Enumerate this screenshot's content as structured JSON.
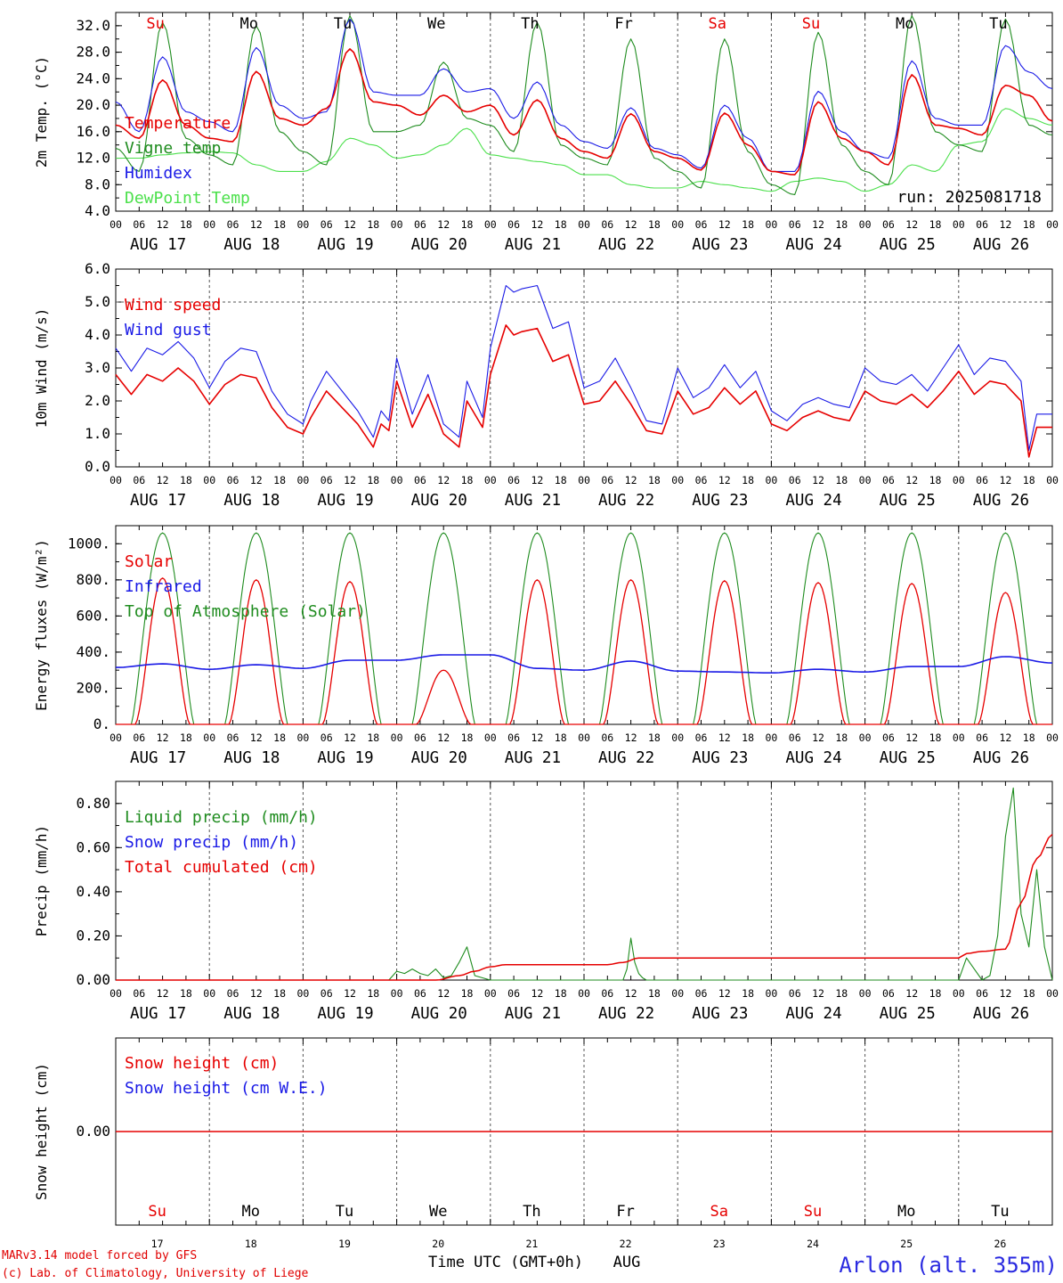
{
  "colors": {
    "red": "#e60000",
    "green": "#1f8c1f",
    "blue": "#1a1ae6",
    "lightgreen": "#4ce04c"
  },
  "weekdays": [
    "Su",
    "Mo",
    "Tu",
    "We",
    "Th",
    "Fr",
    "Sa",
    "Su",
    "Mo",
    "Tu"
  ],
  "weekday_colors": [
    "red",
    "black",
    "black",
    "black",
    "black",
    "black",
    "red",
    "red",
    "black",
    "black"
  ],
  "date_labels": [
    "AUG 17",
    "AUG 18",
    "AUG 19",
    "AUG 20",
    "AUG 21",
    "AUG 22",
    "AUG 23",
    "AUG 24",
    "AUG 25",
    "AUG 26"
  ],
  "hour_labels": [
    "00",
    "06",
    "12",
    "18"
  ],
  "end_hour_label": "00",
  "bottom_day_numbers": [
    "17",
    "18",
    "19",
    "20",
    "21",
    "22",
    "23",
    "24",
    "25",
    "26"
  ],
  "run_label": "run: 2025081718",
  "xtitle": "Time UTC (GMT+0h)",
  "xtitle_month": "AUG",
  "footer": {
    "line1": "MARv3.14 model forced by GFS",
    "line2": "(c) Lab. of Climatology, University of Liege"
  },
  "station": "Arlon (alt. 355m)",
  "chart_data": [
    {
      "id": "temp",
      "type": "line",
      "ylabel": "2m Temp. (°C)",
      "ylim": [
        4,
        34
      ],
      "yticks": [
        "4.0",
        "8.0",
        "12.0",
        "16.0",
        "20.0",
        "24.0",
        "28.0",
        "32.0"
      ],
      "x_unit": "hours from AUG 17 00 UTC",
      "xlim": [
        0,
        240
      ],
      "legend": [
        {
          "label": "Temperature",
          "color": "red"
        },
        {
          "label": "Vigne temp",
          "color": "green"
        },
        {
          "label": "Humidex",
          "color": "blue"
        },
        {
          "label": "DewPoint Temp",
          "color": "lightgreen"
        }
      ],
      "series": [
        {
          "name": "Temperature",
          "color": "red",
          "x": [
            0,
            6,
            12,
            18,
            24,
            30,
            36,
            42,
            48,
            54,
            60,
            66,
            72,
            78,
            84,
            90,
            96,
            102,
            108,
            114,
            120,
            126,
            132,
            138,
            144,
            150,
            156,
            162,
            168,
            174,
            180,
            186,
            192,
            198,
            204,
            210,
            216,
            222,
            228,
            234,
            240
          ],
          "values": [
            17,
            15,
            23.8,
            17,
            15,
            14.5,
            25.1,
            18,
            17,
            19.5,
            28.5,
            20.5,
            20,
            18.5,
            21.5,
            19,
            20,
            15.5,
            20.8,
            15,
            13,
            12,
            18.7,
            13,
            12,
            10.2,
            18.8,
            14,
            10,
            9.5,
            20.5,
            15,
            13,
            11,
            24.6,
            17,
            16.5,
            15.5,
            23,
            21.5,
            17.6
          ]
        },
        {
          "name": "Vigne temp",
          "color": "green",
          "x": [
            0,
            6,
            12,
            18,
            24,
            30,
            36,
            42,
            48,
            54,
            60,
            66,
            72,
            78,
            84,
            90,
            96,
            102,
            108,
            114,
            120,
            126,
            132,
            138,
            144,
            150,
            156,
            162,
            168,
            174,
            180,
            186,
            192,
            198,
            204,
            210,
            216,
            222,
            228,
            234,
            240
          ],
          "values": [
            13.5,
            10,
            32.5,
            15,
            12.5,
            11,
            32,
            16,
            13,
            11,
            33.5,
            16,
            16,
            17,
            26.5,
            18,
            17,
            13,
            32.5,
            14,
            12,
            11,
            30,
            12,
            10,
            7.5,
            30,
            13,
            8,
            6.5,
            31,
            14,
            10,
            8,
            33.5,
            16,
            14,
            13,
            33,
            17,
            15.5
          ]
        },
        {
          "name": "Humidex",
          "color": "blue",
          "x": [
            0,
            6,
            12,
            18,
            24,
            30,
            36,
            42,
            48,
            54,
            60,
            66,
            72,
            78,
            84,
            90,
            96,
            102,
            108,
            114,
            120,
            126,
            132,
            138,
            144,
            150,
            156,
            162,
            168,
            174,
            180,
            186,
            192,
            198,
            204,
            210,
            216,
            222,
            228,
            234,
            240
          ],
          "values": [
            20.5,
            16,
            27.3,
            19,
            17.5,
            16,
            28.7,
            20,
            18,
            19,
            33,
            22,
            21.5,
            21.5,
            25.5,
            22,
            22.5,
            18,
            23.5,
            17,
            14.5,
            13.5,
            19.6,
            13.5,
            12.5,
            10.5,
            20,
            15,
            10,
            10,
            22.1,
            16,
            13,
            12,
            26.7,
            18,
            17,
            17,
            29,
            25,
            22.5
          ]
        },
        {
          "name": "DewPoint Temp",
          "color": "lightgreen",
          "x": [
            0,
            6,
            12,
            18,
            24,
            30,
            36,
            42,
            48,
            54,
            60,
            66,
            72,
            78,
            84,
            90,
            96,
            102,
            108,
            114,
            120,
            126,
            132,
            138,
            144,
            150,
            156,
            162,
            168,
            174,
            180,
            186,
            192,
            198,
            204,
            210,
            216,
            222,
            228,
            234,
            240
          ],
          "values": [
            12,
            12,
            12.5,
            12.8,
            13,
            12.8,
            11,
            10,
            10,
            11.5,
            15,
            14,
            12,
            12.5,
            14,
            16.5,
            12.5,
            12,
            11.5,
            11,
            9.5,
            9.5,
            8,
            7.5,
            7.5,
            8.5,
            8,
            7.5,
            7,
            8.5,
            9,
            8.5,
            7,
            8,
            11,
            10,
            14,
            14.5,
            19.5,
            18,
            17
          ]
        }
      ]
    },
    {
      "id": "wind",
      "type": "line",
      "ylabel": "10m Wind (m/s)",
      "ylim": [
        0,
        6
      ],
      "yticks": [
        "0.0",
        "1.0",
        "2.0",
        "3.0",
        "4.0",
        "5.0",
        "6.0"
      ],
      "ref_line": 5,
      "x_unit": "hours from AUG 17 00 UTC",
      "xlim": [
        0,
        240
      ],
      "legend": [
        {
          "label": "Wind speed",
          "color": "red"
        },
        {
          "label": "Wind gust",
          "color": "blue"
        }
      ],
      "series": [
        {
          "name": "Wind speed",
          "color": "red",
          "x": [
            0,
            4,
            8,
            12,
            16,
            20,
            24,
            28,
            32,
            36,
            40,
            44,
            48,
            50,
            54,
            58,
            62,
            66,
            68,
            70,
            72,
            76,
            80,
            84,
            88,
            90,
            94,
            96,
            100,
            102,
            104,
            108,
            112,
            116,
            120,
            124,
            128,
            132,
            136,
            140,
            144,
            148,
            152,
            156,
            160,
            164,
            168,
            172,
            176,
            180,
            184,
            188,
            192,
            196,
            200,
            204,
            208,
            212,
            216,
            220,
            224,
            228,
            232,
            234,
            236,
            240
          ],
          "values": [
            2.8,
            2.2,
            2.8,
            2.6,
            3.0,
            2.6,
            1.9,
            2.5,
            2.8,
            2.7,
            1.8,
            1.2,
            1.0,
            1.5,
            2.3,
            1.8,
            1.3,
            0.6,
            1.3,
            1.1,
            2.6,
            1.2,
            2.2,
            1.0,
            0.6,
            2.0,
            1.2,
            2.8,
            4.3,
            4.0,
            4.1,
            4.2,
            3.2,
            3.4,
            1.9,
            2.0,
            2.6,
            1.9,
            1.1,
            1.0,
            2.3,
            1.6,
            1.8,
            2.4,
            1.9,
            2.3,
            1.3,
            1.1,
            1.5,
            1.7,
            1.5,
            1.4,
            2.3,
            2.0,
            1.9,
            2.2,
            1.8,
            2.3,
            2.9,
            2.2,
            2.6,
            2.5,
            2.0,
            0.3,
            1.2,
            1.2
          ]
        },
        {
          "name": "Wind gust",
          "color": "blue",
          "x": [
            0,
            4,
            8,
            12,
            16,
            20,
            24,
            28,
            32,
            36,
            40,
            44,
            48,
            50,
            54,
            58,
            62,
            66,
            68,
            70,
            72,
            76,
            80,
            84,
            88,
            90,
            94,
            96,
            100,
            102,
            104,
            108,
            112,
            116,
            120,
            124,
            128,
            132,
            136,
            140,
            144,
            148,
            152,
            156,
            160,
            164,
            168,
            172,
            176,
            180,
            184,
            188,
            192,
            196,
            200,
            204,
            208,
            212,
            216,
            220,
            224,
            228,
            232,
            234,
            236,
            240
          ],
          "values": [
            3.6,
            2.9,
            3.6,
            3.4,
            3.8,
            3.3,
            2.4,
            3.2,
            3.6,
            3.5,
            2.3,
            1.6,
            1.3,
            2.0,
            2.9,
            2.3,
            1.7,
            0.9,
            1.7,
            1.4,
            3.3,
            1.6,
            2.8,
            1.3,
            0.9,
            2.6,
            1.5,
            3.6,
            5.5,
            5.3,
            5.4,
            5.5,
            4.2,
            4.4,
            2.4,
            2.6,
            3.3,
            2.4,
            1.4,
            1.3,
            3.0,
            2.1,
            2.4,
            3.1,
            2.4,
            2.9,
            1.7,
            1.4,
            1.9,
            2.1,
            1.9,
            1.8,
            3.0,
            2.6,
            2.5,
            2.8,
            2.3,
            3.0,
            3.7,
            2.8,
            3.3,
            3.2,
            2.6,
            0.5,
            1.6,
            1.6
          ]
        }
      ]
    },
    {
      "id": "energy",
      "type": "line",
      "ylabel": "Energy fluxes (W/m²)",
      "ylim": [
        0,
        1100
      ],
      "yticks": [
        "0.",
        "200.",
        "400.",
        "600.",
        "800.",
        "1000."
      ],
      "x_unit": "hours from AUG 17 00 UTC",
      "xlim": [
        0,
        240
      ],
      "legend": [
        {
          "label": "Solar",
          "color": "red"
        },
        {
          "label": "Infrared",
          "color": "blue"
        },
        {
          "label": "Top of Atmosphere (Solar)",
          "color": "green"
        }
      ],
      "solar_peaks": [
        810,
        800,
        790,
        300,
        800,
        800,
        795,
        785,
        780,
        730
      ],
      "toa_peak": 1060,
      "series": [
        {
          "name": "Solar",
          "color": "red",
          "derived": "daily bell between 05 and 19 UTC, peak from solar_peaks"
        },
        {
          "name": "Top of Atmosphere (Solar)",
          "color": "green",
          "derived": "daily bell between 04 and 20 UTC, peak toa_peak"
        },
        {
          "name": "Infrared",
          "color": "blue",
          "x": [
            0,
            12,
            24,
            36,
            48,
            60,
            72,
            84,
            96,
            108,
            120,
            132,
            144,
            156,
            168,
            180,
            192,
            204,
            216,
            228,
            240
          ],
          "values": [
            315,
            335,
            305,
            330,
            310,
            355,
            355,
            385,
            385,
            310,
            300,
            350,
            295,
            290,
            285,
            305,
            290,
            320,
            320,
            375,
            340
          ]
        }
      ]
    },
    {
      "id": "precip",
      "type": "line",
      "ylabel": "Precip (mm/h)",
      "ylim": [
        0,
        0.9
      ],
      "yticks": [
        "0.00",
        "0.20",
        "0.40",
        "0.60",
        "0.80"
      ],
      "x_unit": "hours from AUG 17 00 UTC",
      "xlim": [
        0,
        240
      ],
      "legend": [
        {
          "label": "Liquid precip (mm/h)",
          "color": "green"
        },
        {
          "label": "Snow precip (mm/h)",
          "color": "blue"
        },
        {
          "label": "Total cumulated (cm)",
          "color": "red"
        }
      ],
      "series": [
        {
          "name": "Liquid precip (mm/h)",
          "color": "green",
          "x": [
            0,
            70,
            72,
            74,
            76,
            78,
            80,
            82,
            84,
            86,
            88,
            90,
            92,
            94,
            96,
            98,
            130,
            131,
            132,
            133,
            134,
            135,
            136,
            138,
            140,
            200,
            216,
            218,
            220,
            222,
            224,
            226,
            228,
            230,
            232,
            234,
            236,
            238,
            240
          ],
          "values": [
            0,
            0,
            0.04,
            0.03,
            0.05,
            0.03,
            0.02,
            0.05,
            0.01,
            0.02,
            0.08,
            0.15,
            0.02,
            0.01,
            0.0,
            0,
            0,
            0.05,
            0.19,
            0.08,
            0.03,
            0.01,
            0.0,
            0,
            0,
            0,
            0,
            0.1,
            0.05,
            0.0,
            0.02,
            0.2,
            0.65,
            0.87,
            0.3,
            0.15,
            0.5,
            0.15,
            0.0
          ]
        },
        {
          "name": "Total cumulated (cm)",
          "color": "red",
          "x": [
            0,
            82,
            88,
            92,
            96,
            100,
            126,
            130,
            134,
            136,
            216,
            218,
            222,
            228,
            232,
            236,
            240
          ],
          "values": [
            0,
            0,
            0.02,
            0.04,
            0.06,
            0.07,
            0.07,
            0.08,
            0.1,
            0.1,
            0.1,
            0.12,
            0.13,
            0.14,
            0.35,
            0.55,
            0.66
          ]
        }
      ]
    },
    {
      "id": "snow",
      "type": "line",
      "ylabel": "Snow height (cm)",
      "ylim": [
        -1,
        1
      ],
      "yticks": [
        "0.00"
      ],
      "x_unit": "hours from AUG 17 00 UTC",
      "xlim": [
        0,
        240
      ],
      "legend": [
        {
          "label": "Snow height (cm)",
          "color": "red"
        },
        {
          "label": "Snow height (cm W.E.)",
          "color": "blue"
        }
      ],
      "series": [
        {
          "name": "Snow height (cm)",
          "color": "red",
          "x": [
            0,
            240
          ],
          "values": [
            0,
            0
          ]
        }
      ]
    }
  ]
}
